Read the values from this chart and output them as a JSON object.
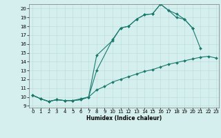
{
  "xlabel": "Humidex (Indice chaleur)",
  "xlim": [
    -0.5,
    23.3
  ],
  "ylim": [
    8.8,
    20.5
  ],
  "background_color": "#d4efed",
  "grid_color": "#b8dbd8",
  "line_color": "#1a7a6e",
  "line1_x": [
    0,
    1,
    2,
    3,
    4,
    5,
    6,
    7,
    8,
    10,
    11,
    12,
    13,
    14,
    15,
    16,
    17,
    18,
    19,
    20,
    21
  ],
  "line1_y": [
    10.2,
    9.8,
    9.5,
    9.7,
    9.6,
    9.6,
    9.7,
    10.0,
    13.0,
    16.5,
    17.8,
    18.0,
    18.8,
    19.3,
    19.4,
    20.5,
    19.8,
    19.4,
    18.8,
    17.8,
    15.5
  ],
  "line2_x": [
    0,
    1,
    2,
    3,
    4,
    5,
    6,
    7,
    8,
    10,
    11,
    12,
    13,
    14,
    15,
    16,
    17,
    18,
    19,
    20
  ],
  "line2_y": [
    10.2,
    9.8,
    9.5,
    9.7,
    9.6,
    9.6,
    9.8,
    10.0,
    14.7,
    16.4,
    17.8,
    18.0,
    18.8,
    19.3,
    19.4,
    20.5,
    19.8,
    19.0,
    18.8,
    17.8
  ],
  "line3_x": [
    0,
    1,
    2,
    3,
    4,
    5,
    6,
    7,
    8,
    9,
    10,
    11,
    12,
    13,
    14,
    15,
    16,
    17,
    18,
    19,
    20,
    21,
    22,
    23
  ],
  "line3_y": [
    10.2,
    9.8,
    9.5,
    9.7,
    9.6,
    9.6,
    9.7,
    10.0,
    10.8,
    11.2,
    11.7,
    12.0,
    12.3,
    12.6,
    12.9,
    13.1,
    13.4,
    13.7,
    13.9,
    14.1,
    14.3,
    14.5,
    14.6,
    14.4
  ],
  "xticks": [
    0,
    1,
    2,
    3,
    4,
    5,
    6,
    7,
    8,
    9,
    10,
    11,
    12,
    13,
    14,
    15,
    16,
    17,
    18,
    19,
    20,
    21,
    22,
    23
  ],
  "yticks": [
    9,
    10,
    11,
    12,
    13,
    14,
    15,
    16,
    17,
    18,
    19,
    20
  ],
  "axis_fontsize": 5.5,
  "tick_fontsize": 5.0
}
